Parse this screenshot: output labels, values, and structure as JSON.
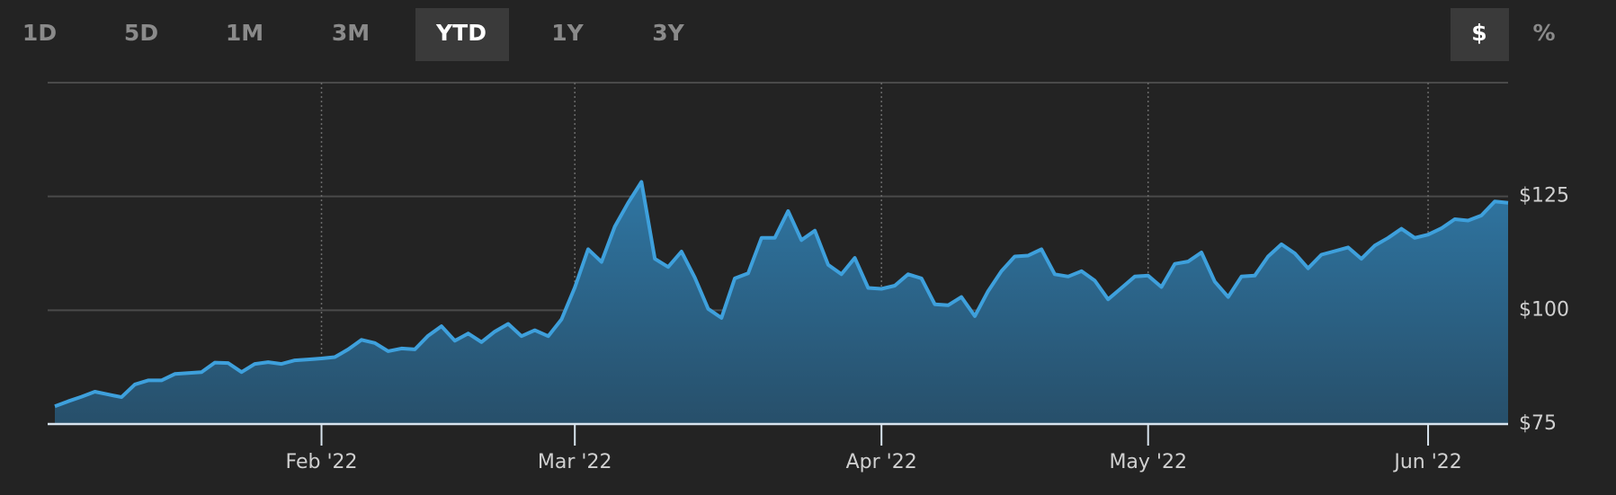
{
  "controls": {
    "ranges": [
      {
        "label": "1D",
        "active": false
      },
      {
        "label": "5D",
        "active": false
      },
      {
        "label": "1M",
        "active": false
      },
      {
        "label": "3M",
        "active": false
      },
      {
        "label": "YTD",
        "active": true
      },
      {
        "label": "1Y",
        "active": false
      },
      {
        "label": "3Y",
        "active": false
      }
    ],
    "units": [
      {
        "label": "$",
        "active": true
      },
      {
        "label": "%",
        "active": false
      }
    ]
  },
  "chart_data": {
    "type": "area",
    "color": "#3ea0dc",
    "grid": true,
    "categories": [
      null,
      null,
      null,
      null,
      null,
      null,
      null,
      null,
      null,
      null,
      null,
      null,
      null,
      null,
      null,
      null,
      null,
      null,
      null,
      null,
      "Feb '22",
      null,
      null,
      null,
      null,
      null,
      null,
      null,
      null,
      null,
      null,
      null,
      null,
      null,
      null,
      null,
      null,
      null,
      null,
      "Mar '22",
      null,
      null,
      null,
      null,
      null,
      null,
      null,
      null,
      null,
      null,
      null,
      null,
      null,
      null,
      null,
      null,
      null,
      null,
      null,
      null,
      null,
      null,
      "Apr '22",
      null,
      null,
      null,
      null,
      null,
      null,
      null,
      null,
      null,
      null,
      null,
      null,
      null,
      null,
      null,
      null,
      null,
      null,
      null,
      "May '22",
      null,
      null,
      null,
      null,
      null,
      null,
      null,
      null,
      null,
      null,
      null,
      null,
      null,
      null,
      null,
      null,
      null,
      null,
      null,
      null,
      "Jun '22",
      null,
      null,
      null,
      null,
      null,
      null
    ],
    "values": [
      78.9,
      80,
      81,
      82.1,
      81.5,
      80.9,
      83.7,
      84.6,
      84.6,
      86,
      86.2,
      86.4,
      88.5,
      88.4,
      86.4,
      88.2,
      88.6,
      88.2,
      89,
      89.2,
      89.4,
      89.7,
      91.4,
      93.5,
      92.8,
      91,
      91.6,
      91.4,
      94.4,
      96.5,
      93.3,
      94.9,
      93,
      95.3,
      97,
      94.3,
      95.6,
      94.3,
      98,
      105,
      113.4,
      110.6,
      118.4,
      123.6,
      128.2,
      111.3,
      109.5,
      112.9,
      107.2,
      100.3,
      98.3,
      107,
      108.1,
      115.9,
      115.9,
      121.8,
      115.4,
      117.5,
      110,
      107.9,
      111.5,
      104.9,
      104.7,
      105.4,
      107.9,
      107,
      101.3,
      101.1,
      102.9,
      98.7,
      104.2,
      108.6,
      111.8,
      112,
      113.4,
      107.9,
      107.4,
      108.6,
      106.5,
      102.4,
      104.9,
      107.4,
      107.6,
      105.1,
      110.2,
      110.7,
      112.7,
      106.3,
      102.9,
      107.4,
      107.6,
      111.8,
      114.5,
      112.5,
      109.2,
      112.2,
      113,
      113.8,
      111.3,
      114.2,
      115.9,
      117.9,
      115.9,
      116.6,
      118,
      120,
      119.7,
      120.8,
      123.9,
      123.6
    ],
    "ylim": [
      75,
      150
    ],
    "yticks": [
      {
        "value": 75,
        "label": "$75"
      },
      {
        "value": 100,
        "label": "$100"
      },
      {
        "value": 125,
        "label": "$125"
      }
    ]
  }
}
